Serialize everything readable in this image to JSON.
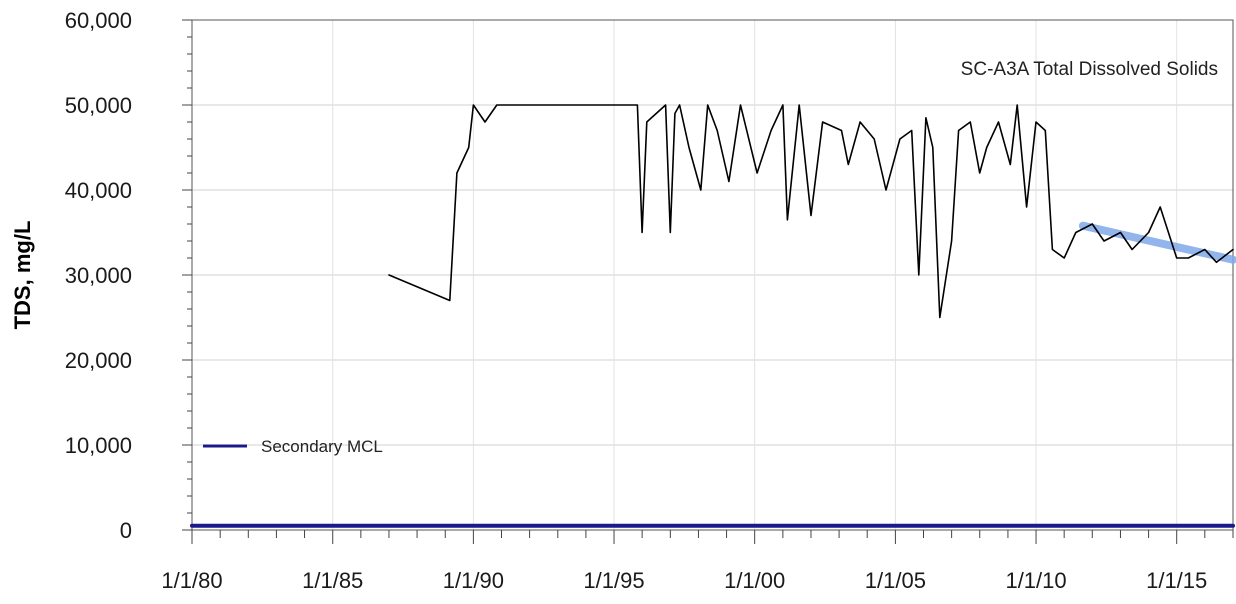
{
  "chart_data": {
    "type": "line",
    "title": "SC-A3A Total Dissolved Solids",
    "xlabel": "",
    "ylabel": "TDS, mg/L",
    "x_axis": {
      "type": "date",
      "range": [
        "1980-01-01",
        "2017-01-01"
      ],
      "ticks": [
        "1980-01-01",
        "1985-01-01",
        "1990-01-01",
        "1995-01-01",
        "2000-01-01",
        "2005-01-01",
        "2010-01-01",
        "2015-01-01"
      ],
      "tick_labels": [
        "1/1/80",
        "1/1/85",
        "1/1/90",
        "1/1/95",
        "1/1/00",
        "1/1/05",
        "1/1/10",
        "1/1/15"
      ]
    },
    "y_axis": {
      "range": [
        0,
        60000
      ],
      "ticks": [
        0,
        10000,
        20000,
        30000,
        40000,
        50000,
        60000
      ],
      "tick_labels": [
        "0",
        "10,000",
        "20,000",
        "30,000",
        "40,000",
        "50,000",
        "60,000"
      ]
    },
    "grid": true,
    "legend": {
      "position": "left",
      "entries": [
        {
          "name": "Secondary MCL",
          "color": "#1a1a8c"
        }
      ]
    },
    "series": [
      {
        "name": "",
        "color": "#000000",
        "x": [
          "1987-01-01",
          "1989-03-01",
          "1989-06-01",
          "1989-11-01",
          "1990-01-01",
          "1990-06-01",
          "1990-11-01",
          "1995-11-01",
          "1996-01-01",
          "1996-03-01",
          "1996-07-01",
          "1996-11-01",
          "1997-01-01",
          "1997-03-01",
          "1997-05-01",
          "1997-09-01",
          "1998-02-01",
          "1998-05-01",
          "1998-09-01",
          "1999-02-01",
          "1999-07-01",
          "2000-02-01",
          "2000-08-01",
          "2001-01-01",
          "2001-03-01",
          "2001-08-01",
          "2002-01-01",
          "2002-06-01",
          "2003-02-01",
          "2003-05-01",
          "2003-10-01",
          "2004-04-01",
          "2004-09-01",
          "2005-03-01",
          "2005-08-01",
          "2005-11-01",
          "2006-02-01",
          "2006-05-01",
          "2006-08-01",
          "2007-01-01",
          "2007-04-01",
          "2007-09-01",
          "2008-01-01",
          "2008-04-01",
          "2008-09-01",
          "2009-02-01",
          "2009-05-01",
          "2009-09-01",
          "2010-01-01",
          "2010-05-01",
          "2010-08-01",
          "2011-01-01",
          "2011-06-01",
          "2012-01-01",
          "2012-06-01",
          "2013-01-01",
          "2013-06-01",
          "2014-01-01",
          "2014-06-01",
          "2015-01-01",
          "2015-06-01",
          "2016-01-01",
          "2016-06-01",
          "2017-01-01"
        ],
        "y": [
          30000,
          27000,
          42000,
          45000,
          50000,
          48000,
          50000,
          50000,
          35000,
          48000,
          49000,
          50000,
          35000,
          49000,
          50000,
          45000,
          40000,
          50000,
          47000,
          41000,
          50000,
          42000,
          47000,
          50000,
          36500,
          50000,
          37000,
          48000,
          47000,
          43000,
          48000,
          46000,
          40000,
          46000,
          47000,
          30000,
          48500,
          45000,
          25000,
          34000,
          47000,
          48000,
          42000,
          45000,
          48000,
          43000,
          50000,
          38000,
          48000,
          47000,
          33000,
          32000,
          35000,
          36000,
          34000,
          35000,
          33000,
          35000,
          38000,
          32000,
          32000,
          33000,
          31500,
          33000
        ]
      },
      {
        "name": "",
        "color": "#7fa8e8",
        "x": [
          "2011-09-01",
          "2017-01-01"
        ],
        "y": [
          35800,
          31800
        ]
      },
      {
        "name": "Secondary MCL",
        "color": "#1a1a8c",
        "x": [
          "1980-01-01",
          "2017-01-01"
        ],
        "y": [
          500,
          500
        ]
      }
    ]
  }
}
